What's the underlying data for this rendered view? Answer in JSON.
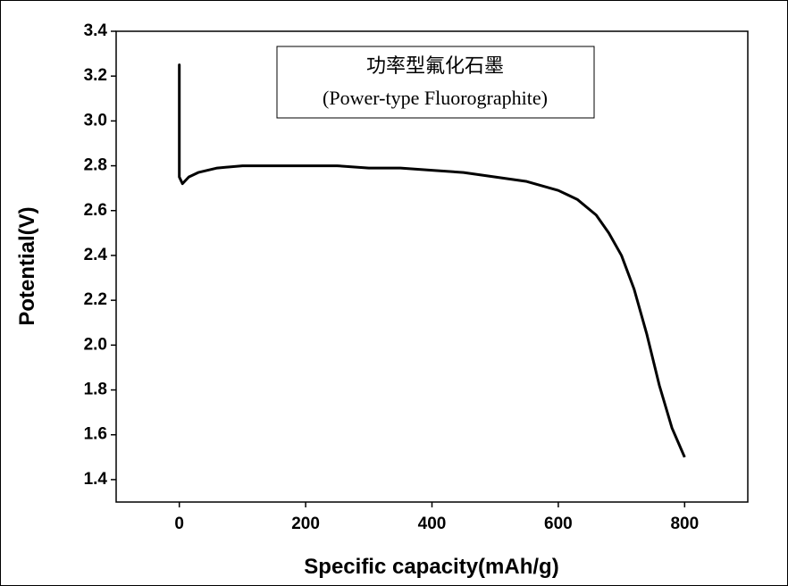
{
  "chart_data": {
    "type": "line",
    "xlabel": "Specific capacity(mAh/g)",
    "ylabel": "Potential(V)",
    "annotation": [
      "功率型氟化石墨",
      "(Power-type Fluorographite)"
    ],
    "color": "#000000",
    "x": [
      0,
      0,
      0,
      5,
      15,
      30,
      60,
      100,
      150,
      200,
      250,
      300,
      350,
      400,
      450,
      500,
      550,
      600,
      630,
      660,
      680,
      700,
      720,
      740,
      760,
      780,
      800
    ],
    "values": [
      2.93,
      3.25,
      2.75,
      2.72,
      2.75,
      2.77,
      2.79,
      2.8,
      2.8,
      2.8,
      2.8,
      2.79,
      2.79,
      2.78,
      2.77,
      2.75,
      2.73,
      2.69,
      2.65,
      2.58,
      2.5,
      2.4,
      2.25,
      2.05,
      1.82,
      1.63,
      1.5
    ],
    "xlim": [
      -100,
      900
    ],
    "xticks": [
      0,
      200,
      400,
      600,
      800
    ],
    "ylim": [
      1.3,
      3.4
    ],
    "yticks": [
      1.4,
      1.6,
      1.8,
      {
        "value": 2,
        "label": "2.0"
      },
      2.2,
      2.4,
      2.6,
      2.8,
      {
        "value": 3,
        "label": "3.0"
      },
      3.2,
      3.4
    ]
  }
}
